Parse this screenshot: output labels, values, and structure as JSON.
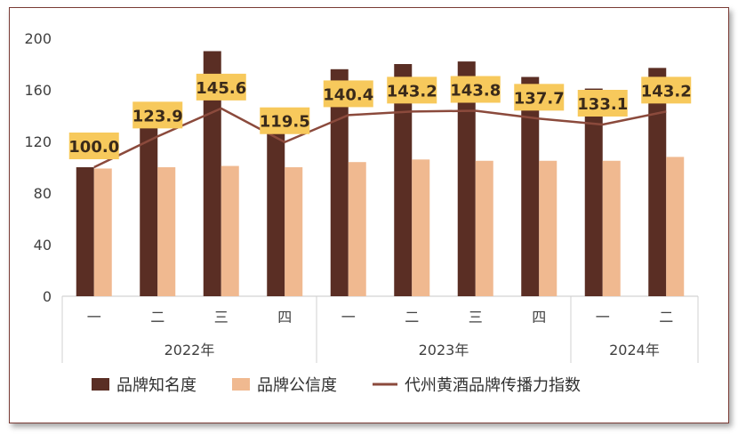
{
  "chart_data": {
    "type": "bar",
    "title": "",
    "ylim": [
      0,
      200
    ],
    "yticks": [
      0,
      40,
      80,
      120,
      160,
      200
    ],
    "categories": [
      "一",
      "二",
      "三",
      "四",
      "一",
      "二",
      "三",
      "四",
      "一",
      "二"
    ],
    "year_groups": [
      {
        "label": "2022年",
        "count": 4
      },
      {
        "label": "2023年",
        "count": 4
      },
      {
        "label": "2024年",
        "count": 2
      }
    ],
    "series": [
      {
        "name": "品牌知名度",
        "kind": "bar",
        "color": "#5a2e24",
        "values": [
          100,
          131,
          190,
          130,
          176,
          180,
          182,
          170,
          161,
          177
        ]
      },
      {
        "name": "品牌公信度",
        "kind": "bar",
        "color": "#f0b990",
        "values": [
          99,
          100,
          101,
          100,
          104,
          106,
          105,
          105,
          105,
          108
        ]
      },
      {
        "name": "代州黄酒品牌传播力指数",
        "kind": "line",
        "color": "#8b4a3c",
        "values": [
          100.0,
          123.9,
          145.6,
          119.5,
          140.4,
          143.2,
          143.8,
          137.7,
          133.1,
          143.2
        ],
        "labels": [
          "100.0",
          "123.9",
          "145.6",
          "119.5",
          "140.4",
          "143.2",
          "143.8",
          "137.7",
          "133.1",
          "143.2"
        ],
        "label_bg": "#f7c95c"
      }
    ],
    "legend_position": "bottom",
    "grid": false
  }
}
